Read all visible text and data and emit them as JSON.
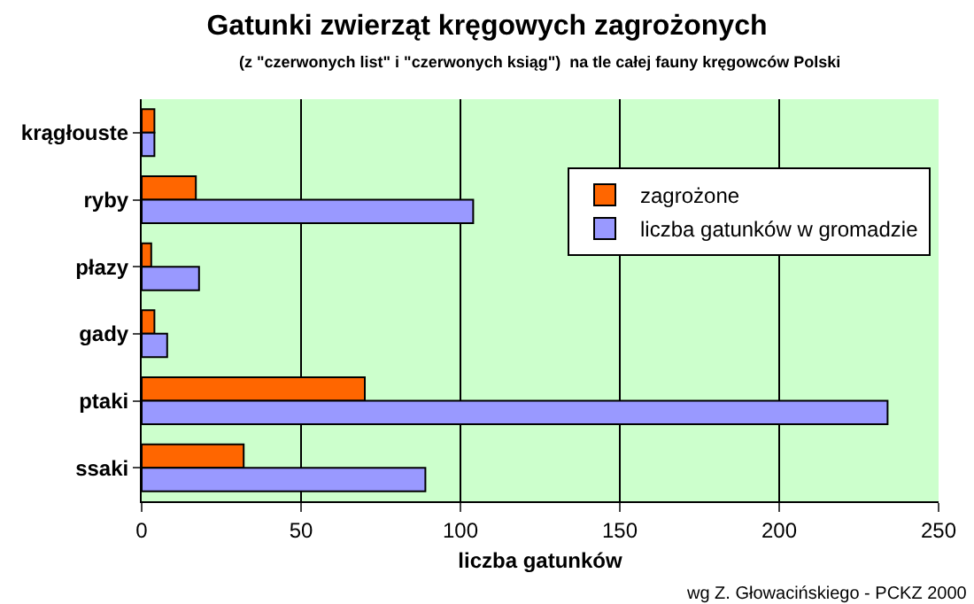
{
  "chart_data": {
    "type": "bar",
    "orientation": "horizontal",
    "title": "Gatunki zwierząt kręgowych zagrożonych",
    "subtitle": "(z \"czerwonych list\" i \"czerwonych ksiąg\")  na tle całej fauny kręgowców Polski",
    "xlabel": "liczba gatunków",
    "categories": [
      "krągłouste",
      "ryby",
      "płazy",
      "gady",
      "ptaki",
      "ssaki"
    ],
    "series": [
      {
        "name": "zagrożone",
        "color": "#ff6600",
        "values": [
          4,
          17,
          3,
          4,
          70,
          32
        ]
      },
      {
        "name": "liczba gatunków w gromadzie",
        "color": "#9999ff",
        "values": [
          4,
          104,
          18,
          8,
          234,
          89
        ]
      }
    ],
    "xlim": [
      0,
      250
    ],
    "xticks": [
      0,
      50,
      100,
      150,
      200,
      250
    ],
    "grid": "x",
    "legend": "right",
    "annotations": [
      "wg Z. Głowacińskiego - PCKZ 2000"
    ]
  }
}
